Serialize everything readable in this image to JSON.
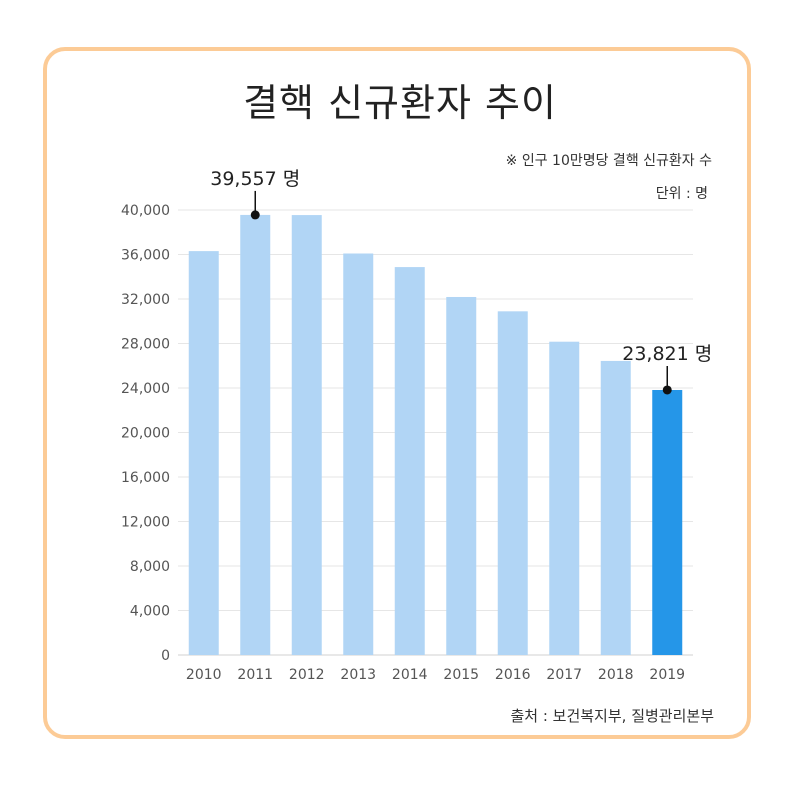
{
  "chart_data": {
    "type": "bar",
    "title": "결핵 신규환자 추이",
    "note": "※ 인구 10만명당 결핵 신규환자 수",
    "unit_label": "단위 : 명",
    "source": "출처 : 보건복지부, 질병관리본부",
    "categories": [
      "2010",
      "2011",
      "2012",
      "2013",
      "2014",
      "2015",
      "2016",
      "2017",
      "2018",
      "2019"
    ],
    "values": [
      36305,
      39557,
      39545,
      36089,
      34869,
      32181,
      30892,
      28161,
      26433,
      23821
    ],
    "ylim": [
      0,
      40000
    ],
    "yticks": [
      "0",
      "4,000",
      "8,000",
      "12,000",
      "16,000",
      "20,000",
      "24,000",
      "28,000",
      "32,000",
      "36,000",
      "40,000"
    ],
    "grid": true,
    "annotations": [
      {
        "category": "2011",
        "text": "39,557 명"
      },
      {
        "category": "2019",
        "text": "23,821 명"
      }
    ],
    "colors": {
      "bar": "#b1d5f5",
      "highlight": "#2596e8",
      "frame": "#fccb96",
      "grid": "#e6e6e6"
    },
    "highlight_category": "2019"
  }
}
